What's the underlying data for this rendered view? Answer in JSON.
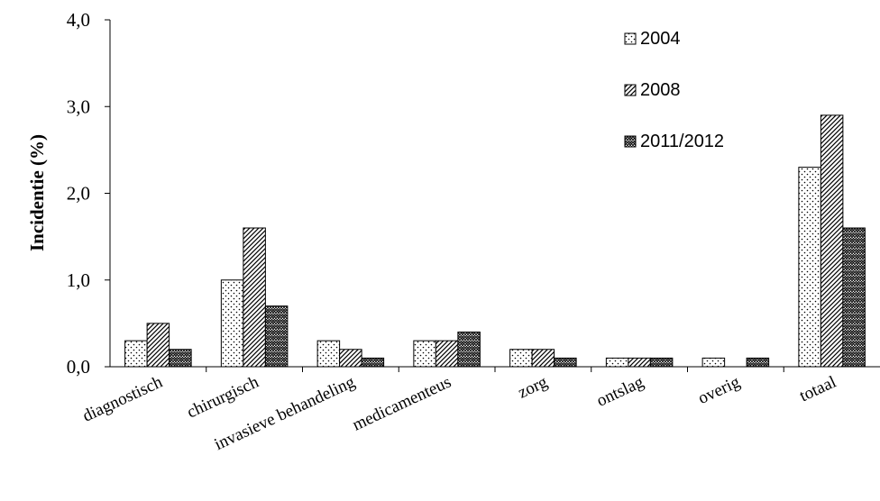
{
  "chart_data": {
    "type": "bar",
    "title": "",
    "xlabel": "",
    "ylabel": "Incidentie (%)",
    "ylim": [
      0,
      4
    ],
    "yticks": [
      "0,0",
      "1,0",
      "2,0",
      "3,0",
      "4,0"
    ],
    "legend_position": "top-right",
    "categories": [
      "diagnostisch",
      "chirurgisch",
      "invasieve behandeling",
      "medicamenteus",
      "zorg",
      "ontslag",
      "overig",
      "totaal"
    ],
    "series": [
      {
        "name": "2004",
        "values": [
          0.3,
          1.0,
          0.3,
          0.3,
          0.2,
          0.1,
          0.1,
          2.3
        ],
        "pattern": "dots"
      },
      {
        "name": "2008",
        "values": [
          0.5,
          1.6,
          0.2,
          0.3,
          0.2,
          0.1,
          0.0,
          2.9
        ],
        "pattern": "diagonal"
      },
      {
        "name": "2011/2012",
        "values": [
          0.2,
          0.7,
          0.1,
          0.4,
          0.1,
          0.1,
          0.1,
          1.6
        ],
        "pattern": "zigzag"
      }
    ],
    "colors": {
      "bar_fill": "#ffffff",
      "ink": "#000000"
    }
  }
}
